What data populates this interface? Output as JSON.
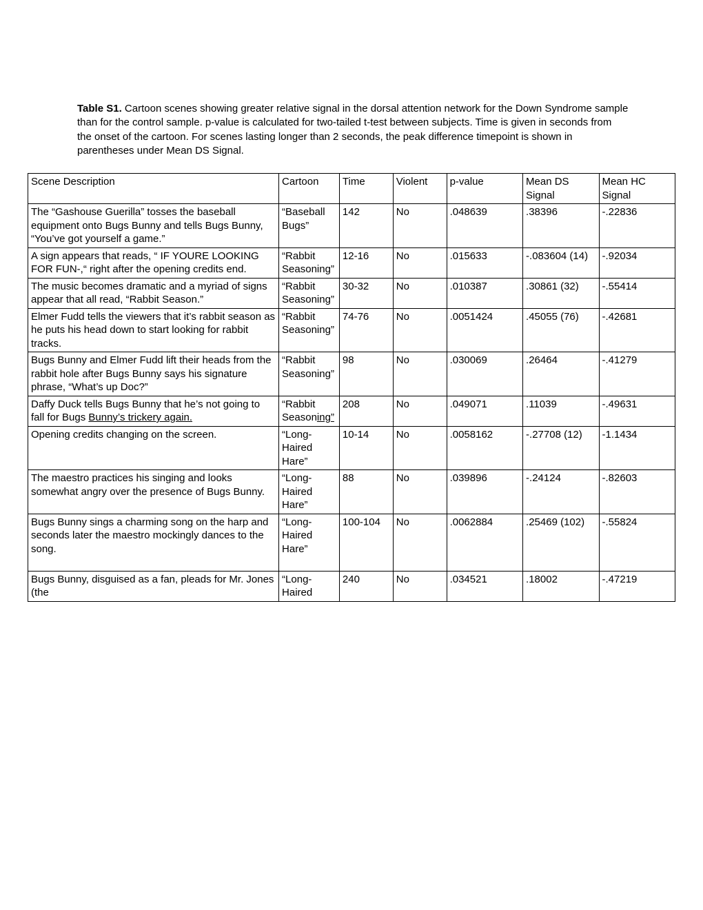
{
  "caption": {
    "label": "Table S1.",
    "text": " Cartoon scenes showing greater relative signal in the dorsal attention network for the Down Syndrome sample than for the control sample. p-value is calculated for two-tailed t-test between subjects. Time is given in seconds from the onset of the cartoon. For scenes lasting longer than 2 seconds, the peak difference timepoint is shown in parentheses under Mean DS Signal."
  },
  "columns": [
    "Scene Description",
    "Cartoon",
    "Time",
    "Violent",
    "p-value",
    "Mean DS Signal",
    "Mean HC Signal"
  ],
  "rows": [
    {
      "scene": "The “Gashouse Guerilla” tosses the baseball equipment onto Bugs Bunny and tells Bugs Bunny, “You’ve got yourself a game.”",
      "cartoon": "“Baseball Bugs”",
      "time": "142",
      "violent": "No",
      "pvalue": ".048639",
      "meands": ".38396",
      "meanhc": "-.22836"
    },
    {
      "scene": "A sign appears that reads, “ IF YOURE LOOKING FOR FUN-,“ right after the opening credits end.",
      "cartoon": "“Rabbit Seasoning”",
      "time": "12-16",
      "violent": "No",
      "pvalue": ".015633",
      "meands": "-.083604 (14)",
      "meanhc": "-.92034"
    },
    {
      "scene": "The music becomes dramatic and a myriad of signs appear that all read, “Rabbit Season.”",
      "cartoon": "“Rabbit Seasoning”",
      "time": "30-32",
      "violent": "No",
      "pvalue": ".010387",
      "meands": ".30861 (32)",
      "meanhc": "-.55414"
    },
    {
      "scene": "Elmer Fudd tells the viewers that it’s rabbit season as he puts his head down to start looking for rabbit tracks.",
      "cartoon": "“Rabbit Seasoning”",
      "time": "74-76",
      "violent": "No",
      "pvalue": ".0051424",
      "meands": ".45055 (76)",
      "meanhc": "-.42681"
    },
    {
      "scene": "Bugs Bunny and Elmer Fudd lift their heads from the rabbit hole after Bugs Bunny says his signature phrase, “What’s up Doc?”",
      "cartoon": "“Rabbit Seasoning”",
      "time": "98",
      "violent": "No",
      "pvalue": ".030069",
      "meands": ".26464",
      "meanhc": "-.41279"
    },
    {
      "scene_html": "Daffy Duck tells Bugs Bunny that he’s not going to fall for Bugs <span class=\"underlined\">Bunny’s trickery again.</span>",
      "cartoon_html": "“Rabbit Season<span class=\"underlined\">ing”</span>",
      "time": "208",
      "violent": "No",
      "pvalue": ".049071",
      "meands": ".11039",
      "meanhc": "-.49631"
    },
    {
      "scene": "Opening credits changing on the screen.",
      "cartoon": "“Long-Haired Hare”",
      "time": "10-14",
      "violent": "No",
      "pvalue": ".0058162",
      "meands": "-.27708 (12)",
      "meanhc": "-1.1434"
    },
    {
      "scene": "The maestro practices his singing and looks somewhat angry over the presence of Bugs Bunny.\n ",
      "cartoon": "“Long-Haired Hare”",
      "time": "88",
      "violent": "No",
      "pvalue": ".039896",
      "meands": "-.24124",
      "meanhc": "-.82603"
    },
    {
      "scene": "Bugs Bunny sings a charming song on the harp and seconds later the maestro mockingly dances to the song.\n ",
      "cartoon": "“Long-Haired Hare”",
      "time": "100-104",
      "violent": "No",
      "pvalue": ".0062884",
      "meands": ".25469 (102)",
      "meanhc": "-.55824"
    },
    {
      "scene": "Bugs Bunny, disguised as a fan, pleads for Mr. Jones (the",
      "cartoon": "“Long-Haired",
      "time": "240",
      "violent": "No",
      "pvalue": ".034521",
      "meands": ".18002",
      "meanhc": "-.47219"
    }
  ]
}
